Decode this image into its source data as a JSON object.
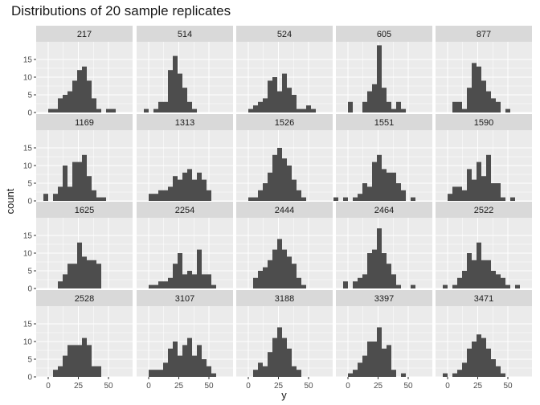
{
  "chart_data": {
    "type": "bar",
    "title": "Distributions of 20 sample replicates",
    "xlabel": "y",
    "ylabel": "count",
    "xlim": [
      -10,
      70
    ],
    "ylim": [
      0,
      20
    ],
    "x_ticks": [
      0,
      25,
      50
    ],
    "y_ticks": [
      0,
      5,
      10,
      15
    ],
    "bin_width": 4,
    "facet_layout": {
      "rows": 4,
      "cols": 5
    },
    "colors": {
      "bar": "#4d4d4d",
      "panel_background": "#ebebeb",
      "strip_background": "#d9d9d9",
      "grid": "#ffffff",
      "text": "#4d4d4d"
    },
    "facets": [
      {
        "label": "217",
        "bins": [
          [
            0,
            1
          ],
          [
            4,
            1
          ],
          [
            8,
            4
          ],
          [
            12,
            5
          ],
          [
            16,
            6
          ],
          [
            20,
            9
          ],
          [
            24,
            12
          ],
          [
            28,
            13
          ],
          [
            32,
            9
          ],
          [
            36,
            4
          ],
          [
            40,
            1
          ],
          [
            48,
            1
          ],
          [
            52,
            1
          ]
        ]
      },
      {
        "label": "514",
        "bins": [
          [
            -4,
            1
          ],
          [
            4,
            1
          ],
          [
            8,
            3
          ],
          [
            12,
            3
          ],
          [
            16,
            12
          ],
          [
            20,
            16
          ],
          [
            24,
            11
          ],
          [
            28,
            7
          ],
          [
            32,
            3
          ],
          [
            36,
            1
          ]
        ]
      },
      {
        "label": "524",
        "bins": [
          [
            0,
            1
          ],
          [
            4,
            2
          ],
          [
            8,
            3
          ],
          [
            12,
            4
          ],
          [
            16,
            9
          ],
          [
            20,
            10
          ],
          [
            24,
            6
          ],
          [
            28,
            11
          ],
          [
            32,
            7
          ],
          [
            36,
            5
          ],
          [
            40,
            1
          ],
          [
            44,
            1
          ],
          [
            48,
            2
          ],
          [
            52,
            1
          ]
        ]
      },
      {
        "label": "605",
        "bins": [
          [
            0,
            3
          ],
          [
            12,
            3
          ],
          [
            16,
            6
          ],
          [
            20,
            8
          ],
          [
            24,
            19
          ],
          [
            28,
            7
          ],
          [
            32,
            3
          ],
          [
            36,
            1
          ],
          [
            40,
            3
          ],
          [
            44,
            1
          ]
        ]
      },
      {
        "label": "877",
        "bins": [
          [
            4,
            3
          ],
          [
            8,
            3
          ],
          [
            12,
            1
          ],
          [
            16,
            7
          ],
          [
            20,
            14
          ],
          [
            24,
            13
          ],
          [
            28,
            9
          ],
          [
            32,
            6
          ],
          [
            36,
            4
          ],
          [
            40,
            3
          ],
          [
            48,
            1
          ]
        ]
      },
      {
        "label": "1169",
        "bins": [
          [
            -4,
            2
          ],
          [
            4,
            2
          ],
          [
            8,
            4
          ],
          [
            12,
            10
          ],
          [
            16,
            4
          ],
          [
            20,
            11
          ],
          [
            24,
            11
          ],
          [
            28,
            13
          ],
          [
            32,
            7
          ],
          [
            36,
            3
          ],
          [
            40,
            1
          ],
          [
            44,
            1
          ]
        ]
      },
      {
        "label": "1313",
        "bins": [
          [
            0,
            2
          ],
          [
            4,
            2
          ],
          [
            8,
            3
          ],
          [
            12,
            3
          ],
          [
            16,
            4
          ],
          [
            20,
            7
          ],
          [
            24,
            6
          ],
          [
            28,
            8
          ],
          [
            32,
            9
          ],
          [
            36,
            6
          ],
          [
            40,
            8
          ],
          [
            44,
            6
          ],
          [
            48,
            3
          ]
        ]
      },
      {
        "label": "1526",
        "bins": [
          [
            0,
            1
          ],
          [
            4,
            1
          ],
          [
            8,
            3
          ],
          [
            12,
            5
          ],
          [
            16,
            8
          ],
          [
            20,
            13
          ],
          [
            24,
            15
          ],
          [
            28,
            12
          ],
          [
            32,
            10
          ],
          [
            36,
            6
          ],
          [
            40,
            3
          ],
          [
            44,
            1
          ]
        ]
      },
      {
        "label": "1551",
        "bins": [
          [
            -12,
            1
          ],
          [
            -4,
            1
          ],
          [
            4,
            1
          ],
          [
            8,
            2
          ],
          [
            12,
            5
          ],
          [
            16,
            4
          ],
          [
            20,
            11
          ],
          [
            24,
            13
          ],
          [
            28,
            9
          ],
          [
            32,
            8
          ],
          [
            36,
            8
          ],
          [
            40,
            5
          ],
          [
            44,
            3
          ],
          [
            52,
            1
          ]
        ]
      },
      {
        "label": "1590",
        "bins": [
          [
            0,
            2
          ],
          [
            4,
            4
          ],
          [
            8,
            4
          ],
          [
            12,
            3
          ],
          [
            16,
            9
          ],
          [
            20,
            6
          ],
          [
            24,
            11
          ],
          [
            28,
            7
          ],
          [
            32,
            13
          ],
          [
            36,
            5
          ],
          [
            40,
            5
          ],
          [
            44,
            1
          ],
          [
            52,
            1
          ]
        ]
      },
      {
        "label": "1625",
        "bins": [
          [
            8,
            2
          ],
          [
            12,
            4
          ],
          [
            16,
            7
          ],
          [
            20,
            7
          ],
          [
            24,
            13
          ],
          [
            28,
            9
          ],
          [
            32,
            8
          ],
          [
            36,
            8
          ],
          [
            40,
            7
          ]
        ]
      },
      {
        "label": "2254",
        "bins": [
          [
            0,
            1
          ],
          [
            4,
            1
          ],
          [
            8,
            2
          ],
          [
            12,
            2
          ],
          [
            16,
            3
          ],
          [
            20,
            7
          ],
          [
            24,
            10
          ],
          [
            28,
            4
          ],
          [
            32,
            5
          ],
          [
            36,
            4
          ],
          [
            40,
            11
          ],
          [
            44,
            4
          ],
          [
            48,
            4
          ],
          [
            52,
            1
          ]
        ]
      },
      {
        "label": "2444",
        "bins": [
          [
            4,
            3
          ],
          [
            8,
            5
          ],
          [
            12,
            6
          ],
          [
            16,
            8
          ],
          [
            20,
            11
          ],
          [
            24,
            14
          ],
          [
            28,
            11
          ],
          [
            32,
            9
          ],
          [
            36,
            7
          ],
          [
            40,
            3
          ],
          [
            44,
            1
          ]
        ]
      },
      {
        "label": "2464",
        "bins": [
          [
            -4,
            2
          ],
          [
            4,
            2
          ],
          [
            8,
            3
          ],
          [
            12,
            4
          ],
          [
            16,
            10
          ],
          [
            20,
            11
          ],
          [
            24,
            17
          ],
          [
            28,
            10
          ],
          [
            32,
            7
          ],
          [
            36,
            4
          ],
          [
            40,
            1
          ],
          [
            52,
            1
          ]
        ]
      },
      {
        "label": "2522",
        "bins": [
          [
            -4,
            1
          ],
          [
            4,
            1
          ],
          [
            8,
            3
          ],
          [
            12,
            5
          ],
          [
            16,
            10
          ],
          [
            20,
            8
          ],
          [
            24,
            13
          ],
          [
            28,
            8
          ],
          [
            32,
            8
          ],
          [
            36,
            5
          ],
          [
            40,
            4
          ],
          [
            44,
            3
          ],
          [
            48,
            1
          ],
          [
            56,
            1
          ]
        ]
      },
      {
        "label": "2528",
        "bins": [
          [
            4,
            2
          ],
          [
            8,
            3
          ],
          [
            12,
            6
          ],
          [
            16,
            9
          ],
          [
            20,
            9
          ],
          [
            24,
            9
          ],
          [
            28,
            11
          ],
          [
            32,
            9
          ],
          [
            36,
            3
          ],
          [
            40,
            3
          ]
        ]
      },
      {
        "label": "3107",
        "bins": [
          [
            0,
            2
          ],
          [
            4,
            2
          ],
          [
            8,
            2
          ],
          [
            12,
            4
          ],
          [
            16,
            8
          ],
          [
            20,
            10
          ],
          [
            24,
            6
          ],
          [
            28,
            9
          ],
          [
            32,
            11
          ],
          [
            36,
            6
          ],
          [
            40,
            9
          ],
          [
            44,
            5
          ],
          [
            48,
            3
          ],
          [
            52,
            1
          ]
        ]
      },
      {
        "label": "3188",
        "bins": [
          [
            4,
            2
          ],
          [
            8,
            4
          ],
          [
            12,
            3
          ],
          [
            16,
            7
          ],
          [
            20,
            11
          ],
          [
            24,
            14
          ],
          [
            28,
            11
          ],
          [
            32,
            8
          ],
          [
            36,
            3
          ],
          [
            40,
            2
          ]
        ]
      },
      {
        "label": "3397",
        "bins": [
          [
            0,
            1
          ],
          [
            4,
            2
          ],
          [
            8,
            4
          ],
          [
            12,
            6
          ],
          [
            16,
            10
          ],
          [
            20,
            10
          ],
          [
            24,
            14
          ],
          [
            28,
            8
          ],
          [
            32,
            9
          ],
          [
            36,
            2
          ],
          [
            44,
            1
          ]
        ]
      },
      {
        "label": "3471",
        "bins": [
          [
            -4,
            1
          ],
          [
            4,
            1
          ],
          [
            8,
            2
          ],
          [
            12,
            4
          ],
          [
            16,
            8
          ],
          [
            20,
            10
          ],
          [
            24,
            12
          ],
          [
            28,
            11
          ],
          [
            32,
            8
          ],
          [
            36,
            5
          ],
          [
            40,
            3
          ],
          [
            44,
            1
          ]
        ]
      }
    ]
  }
}
